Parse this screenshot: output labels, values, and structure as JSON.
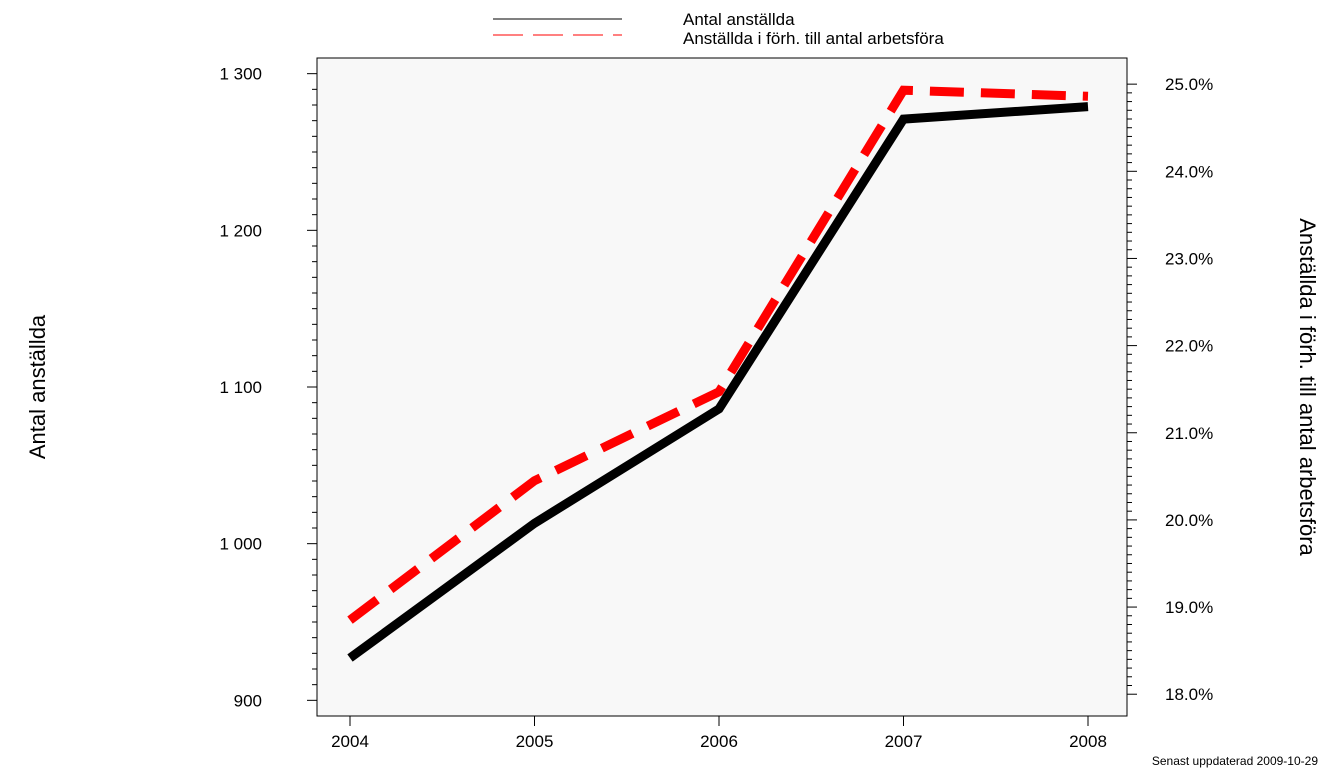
{
  "chart_data": {
    "type": "line",
    "categories": [
      "2004",
      "2005",
      "2006",
      "2007",
      "2008"
    ],
    "series": [
      {
        "name": "Antal anställda",
        "axis": "left",
        "color": "#000000",
        "dash": "solid",
        "values": [
          927,
          1013,
          1086,
          1271,
          1279
        ]
      },
      {
        "name": "Anställda i förh. till antal arbetsföra",
        "axis": "right",
        "color": "#ff0000",
        "dash": "dashed",
        "values": [
          18.85,
          20.45,
          21.47,
          24.93,
          24.86
        ]
      }
    ],
    "y_left": {
      "label": "Antal anställda",
      "ylim": [
        890,
        1310
      ],
      "ticks": [
        900,
        1000,
        1100,
        1200,
        1300
      ],
      "tick_labels": [
        "900",
        "1 000",
        "1 100",
        "1 200",
        "1 300"
      ]
    },
    "y_right": {
      "label": "Anställda i förh. till antal arbetsföra",
      "ylim": [
        17.75,
        25.3
      ],
      "ticks": [
        18,
        19,
        20,
        21,
        22,
        23,
        24,
        25
      ],
      "tick_labels": [
        "18.0%",
        "19.0%",
        "20.0%",
        "21.0%",
        "22.0%",
        "23.0%",
        "24.0%",
        "25.0%"
      ]
    },
    "legend": {
      "placement": "top-center"
    },
    "grid": false,
    "plot_background": "#f8f8f8"
  },
  "footnote": "Senast uppdaterad 2009-10-29"
}
